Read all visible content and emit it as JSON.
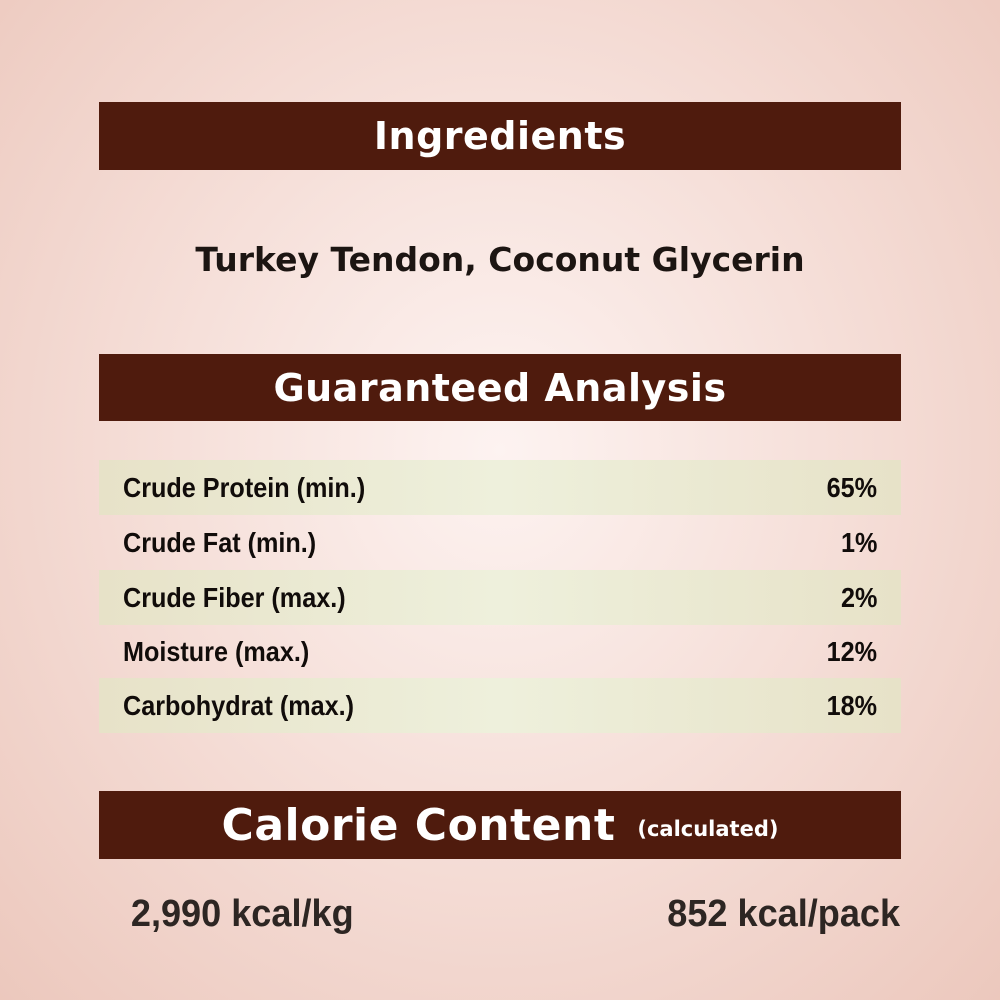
{
  "ingredients": {
    "heading": "Ingredients",
    "text": "Turkey Tendon, Coconut Glycerin"
  },
  "analysis": {
    "heading": "Guaranteed Analysis",
    "rows": [
      {
        "label": "Crude Protein (min.)",
        "value": "65%"
      },
      {
        "label": "Crude Fat (min.)",
        "value": "1%"
      },
      {
        "label": "Crude Fiber (max.)",
        "value": "2%"
      },
      {
        "label": "Moisture (max.)",
        "value": "12%"
      },
      {
        "label": "Carbohydrat (max.)",
        "value": "18%"
      }
    ]
  },
  "calorie": {
    "heading": "Calorie Content",
    "note": "(calculated)",
    "per_kg": "2,990 kcal/kg",
    "per_pack": "852 kcal/pack"
  },
  "colors": {
    "banner": "#4f1b0d",
    "row_shade": "#e9e6cd"
  }
}
